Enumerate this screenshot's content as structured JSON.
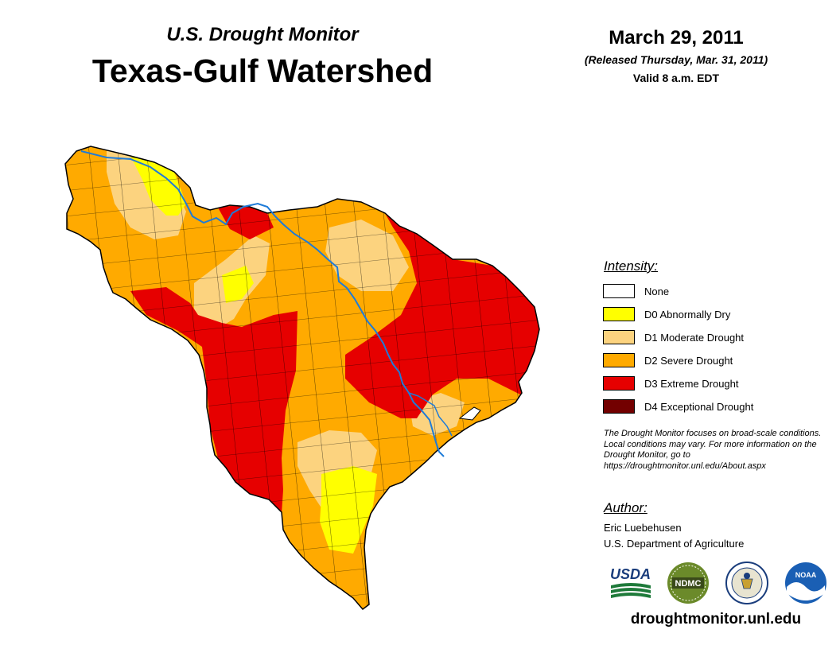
{
  "header": {
    "subtitle": "U.S. Drought Monitor",
    "title": "Texas-Gulf Watershed",
    "date": "March 29, 2011",
    "released": "(Released Thursday, Mar. 31, 2011)",
    "valid": "Valid 8 a.m. EDT"
  },
  "legend": {
    "heading": "Intensity:",
    "items": [
      {
        "label": "None",
        "color": "#ffffff"
      },
      {
        "label": "D0 Abnormally Dry",
        "color": "#ffff00"
      },
      {
        "label": "D1 Moderate Drought",
        "color": "#fcd37f"
      },
      {
        "label": "D2 Severe Drought",
        "color": "#ffaa00"
      },
      {
        "label": "D3 Extreme Drought",
        "color": "#e60000"
      },
      {
        "label": "D4 Exceptional Drought",
        "color": "#730000"
      }
    ]
  },
  "note": "The Drought Monitor focuses on broad-scale conditions. Local conditions may vary. For more information on the Drought Monitor, go to https://droughtmonitor.unl.edu/About.aspx",
  "author": {
    "heading": "Author:",
    "name": "Eric Luebehusen",
    "org": "U.S. Department of Agriculture"
  },
  "logos": {
    "usda": "USDA",
    "ndmc": "NDMC",
    "noaa": "NOAA"
  },
  "footer_url": "droughtmonitor.unl.edu",
  "colors": {
    "river": "#1e7bd8",
    "boundary": "#000000"
  }
}
